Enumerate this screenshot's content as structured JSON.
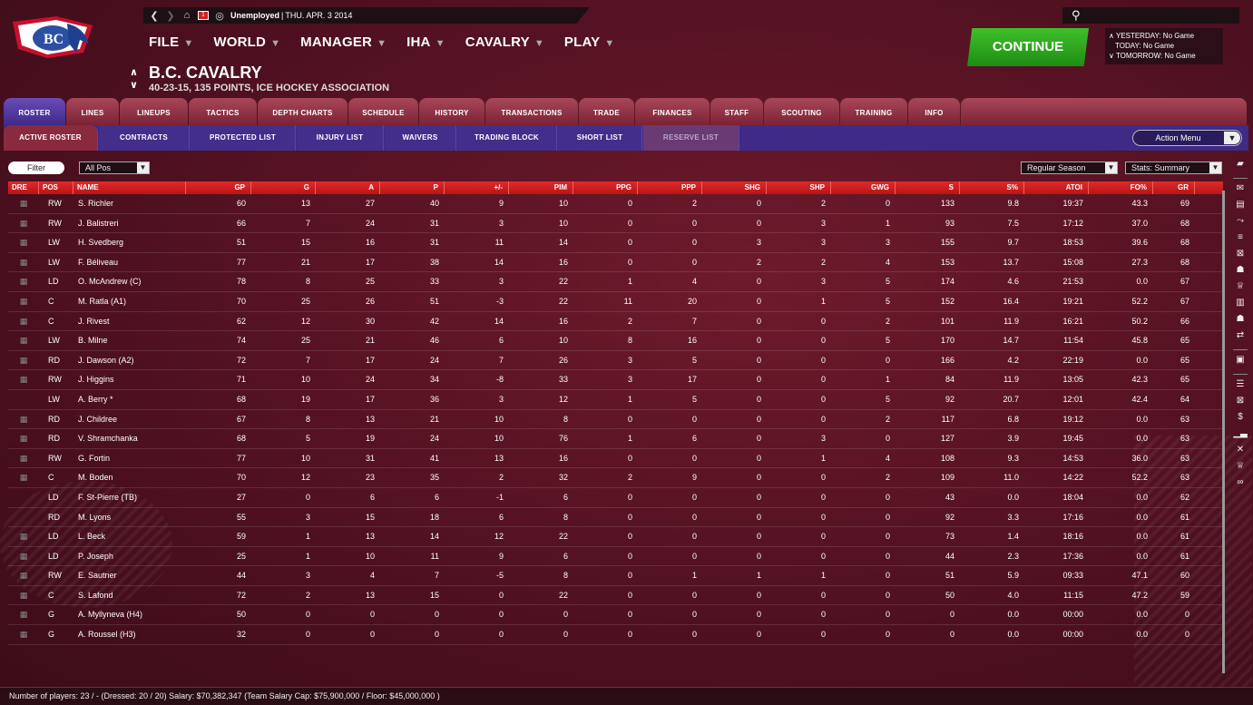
{
  "topbar": {
    "status": "Unemployed",
    "separator": "|",
    "date": "THU. APR. 3 2014",
    "mail_count": "1"
  },
  "logo": {
    "text": "BC"
  },
  "menu": [
    "FILE",
    "WORLD",
    "MANAGER",
    "IHA",
    "CAVALRY",
    "PLAY"
  ],
  "team": {
    "name": "B.C. CAVALRY",
    "record": "40-23-15, 135 POINTS, ICE HOCKEY ASSOCIATION"
  },
  "continue_label": "CONTINUE",
  "games": {
    "yesterday": "YESTERDAY: No Game",
    "today": "TODAY: No Game",
    "tomorrow": "TOMORROW: No Game"
  },
  "tabs": [
    "ROSTER",
    "LINES",
    "LINEUPS",
    "TACTICS",
    "DEPTH CHARTS",
    "SCHEDULE",
    "HISTORY",
    "TRANSACTIONS",
    "TRADE",
    "FINANCES",
    "STAFF",
    "SCOUTING",
    "TRAINING",
    "INFO"
  ],
  "subtabs": [
    "ACTIVE ROSTER",
    "CONTRACTS",
    "PROTECTED LIST",
    "INJURY LIST",
    "WAIVERS",
    "TRADING BLOCK",
    "SHORT LIST",
    "RESERVE LIST"
  ],
  "action_menu": "Action Menu",
  "filter": {
    "button": "Filter",
    "pos": "All Pos",
    "season": "Regular Season",
    "stats": "Stats: Summary"
  },
  "columns": [
    "DRE",
    "POS",
    "NAME",
    "GP",
    "G",
    "A",
    "P",
    "+/-",
    "PIM",
    "PPG",
    "PPP",
    "SHG",
    "SHP",
    "GWG",
    "S",
    "S%",
    "ATOI",
    "FO%",
    "GR"
  ],
  "players": [
    [
      "RW",
      "S. Richler",
      "60",
      "13",
      "27",
      "40",
      "9",
      "10",
      "0",
      "2",
      "0",
      "2",
      "0",
      "133",
      "9.8",
      "19:37",
      "43.3",
      "69",
      true
    ],
    [
      "RW",
      "J. Balistreri",
      "66",
      "7",
      "24",
      "31",
      "3",
      "10",
      "0",
      "0",
      "0",
      "3",
      "1",
      "93",
      "7.5",
      "17:12",
      "37.0",
      "68",
      true
    ],
    [
      "LW",
      "H. Svedberg",
      "51",
      "15",
      "16",
      "31",
      "11",
      "14",
      "0",
      "0",
      "3",
      "3",
      "3",
      "155",
      "9.7",
      "18:53",
      "39.6",
      "68",
      true
    ],
    [
      "LW",
      "F. Béliveau",
      "77",
      "21",
      "17",
      "38",
      "14",
      "16",
      "0",
      "0",
      "2",
      "2",
      "4",
      "153",
      "13.7",
      "15:08",
      "27.3",
      "68",
      true
    ],
    [
      "LD",
      "O. McAndrew (C)",
      "78",
      "8",
      "25",
      "33",
      "3",
      "22",
      "1",
      "4",
      "0",
      "3",
      "5",
      "174",
      "4.6",
      "21:53",
      "0.0",
      "67",
      true
    ],
    [
      "C",
      "M. Ratla (A1)",
      "70",
      "25",
      "26",
      "51",
      "-3",
      "22",
      "11",
      "20",
      "0",
      "1",
      "5",
      "152",
      "16.4",
      "19:21",
      "52.2",
      "67",
      true
    ],
    [
      "C",
      "J. Rivest",
      "62",
      "12",
      "30",
      "42",
      "14",
      "16",
      "2",
      "7",
      "0",
      "0",
      "2",
      "101",
      "11.9",
      "16:21",
      "50.2",
      "66",
      true
    ],
    [
      "LW",
      "B. Milne",
      "74",
      "25",
      "21",
      "46",
      "6",
      "10",
      "8",
      "16",
      "0",
      "0",
      "5",
      "170",
      "14.7",
      "11:54",
      "45.8",
      "65",
      true
    ],
    [
      "RD",
      "J. Dawson (A2)",
      "72",
      "7",
      "17",
      "24",
      "7",
      "26",
      "3",
      "5",
      "0",
      "0",
      "0",
      "166",
      "4.2",
      "22:19",
      "0.0",
      "65",
      true
    ],
    [
      "RW",
      "J. Higgins",
      "71",
      "10",
      "24",
      "34",
      "-8",
      "33",
      "3",
      "17",
      "0",
      "0",
      "1",
      "84",
      "11.9",
      "13:05",
      "42.3",
      "65",
      true
    ],
    [
      "LW",
      "A. Berry *",
      "68",
      "19",
      "17",
      "36",
      "3",
      "12",
      "1",
      "5",
      "0",
      "0",
      "5",
      "92",
      "20.7",
      "12:01",
      "42.4",
      "64",
      false
    ],
    [
      "RD",
      "J. Childree",
      "67",
      "8",
      "13",
      "21",
      "10",
      "8",
      "0",
      "0",
      "0",
      "0",
      "2",
      "117",
      "6.8",
      "19:12",
      "0.0",
      "63",
      true
    ],
    [
      "RD",
      "V. Shramchanka",
      "68",
      "5",
      "19",
      "24",
      "10",
      "76",
      "1",
      "6",
      "0",
      "3",
      "0",
      "127",
      "3.9",
      "19:45",
      "0.0",
      "63",
      true
    ],
    [
      "RW",
      "G. Fortin",
      "77",
      "10",
      "31",
      "41",
      "13",
      "16",
      "0",
      "0",
      "0",
      "1",
      "4",
      "108",
      "9.3",
      "14:53",
      "36.0",
      "63",
      true
    ],
    [
      "C",
      "M. Boden",
      "70",
      "12",
      "23",
      "35",
      "2",
      "32",
      "2",
      "9",
      "0",
      "0",
      "2",
      "109",
      "11.0",
      "14:22",
      "52.2",
      "63",
      true
    ],
    [
      "LD",
      "F. St-Pierre (TB)",
      "27",
      "0",
      "6",
      "6",
      "-1",
      "6",
      "0",
      "0",
      "0",
      "0",
      "0",
      "43",
      "0.0",
      "18:04",
      "0.0",
      "62",
      false
    ],
    [
      "RD",
      "M. Lyons",
      "55",
      "3",
      "15",
      "18",
      "6",
      "8",
      "0",
      "0",
      "0",
      "0",
      "0",
      "92",
      "3.3",
      "17:16",
      "0.0",
      "61",
      false
    ],
    [
      "LD",
      "L. Beck",
      "59",
      "1",
      "13",
      "14",
      "12",
      "22",
      "0",
      "0",
      "0",
      "0",
      "0",
      "73",
      "1.4",
      "18:16",
      "0.0",
      "61",
      true
    ],
    [
      "LD",
      "P. Joseph",
      "25",
      "1",
      "10",
      "11",
      "9",
      "6",
      "0",
      "0",
      "0",
      "0",
      "0",
      "44",
      "2.3",
      "17:36",
      "0.0",
      "61",
      true
    ],
    [
      "RW",
      "E. Sautner",
      "44",
      "3",
      "4",
      "7",
      "-5",
      "8",
      "0",
      "1",
      "1",
      "1",
      "0",
      "51",
      "5.9",
      "09:33",
      "47.1",
      "60",
      true
    ],
    [
      "C",
      "S. Lafond",
      "72",
      "2",
      "13",
      "15",
      "0",
      "22",
      "0",
      "0",
      "0",
      "0",
      "0",
      "50",
      "4.0",
      "11:15",
      "47.2",
      "59",
      true
    ],
    [
      "G",
      "A. Myllyneva (H4)",
      "50",
      "0",
      "0",
      "0",
      "0",
      "0",
      "0",
      "0",
      "0",
      "0",
      "0",
      "0",
      "0.0",
      "00:00",
      "0.0",
      "0",
      true
    ],
    [
      "G",
      "A. Roussel (H3)",
      "32",
      "0",
      "0",
      "0",
      "0",
      "0",
      "0",
      "0",
      "0",
      "0",
      "0",
      "0",
      "0.0",
      "00:00",
      "0.0",
      "0",
      true
    ]
  ],
  "footer": "Number of players: 23 / - (Dressed: 20 / 20)    Salary: $70,382,347  (Team Salary Cap: $75,900,000 / Floor: $45,000,000 )"
}
